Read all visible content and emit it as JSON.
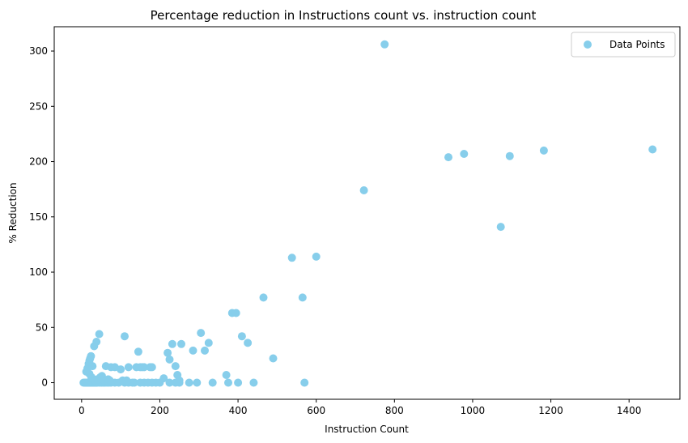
{
  "chart_data": {
    "type": "scatter",
    "title": "Percentage reduction in Instructions count vs. instruction count",
    "xlabel": "Instruction Count",
    "ylabel": "% Reduction",
    "xlim": [
      -70,
      1530
    ],
    "ylim": [
      -15,
      322
    ],
    "xticks": [
      0,
      200,
      400,
      600,
      800,
      1000,
      1200,
      1400
    ],
    "yticks": [
      0,
      50,
      100,
      150,
      200,
      250,
      300
    ],
    "grid": false,
    "legend": {
      "position": "top-right",
      "entries": [
        "Data Points"
      ]
    },
    "color": "#87ceeb",
    "series": [
      {
        "name": "Data Points",
        "points": [
          [
            5,
            0
          ],
          [
            8,
            0
          ],
          [
            10,
            0
          ],
          [
            12,
            0
          ],
          [
            14,
            0
          ],
          [
            16,
            0
          ],
          [
            18,
            0
          ],
          [
            20,
            0
          ],
          [
            22,
            0
          ],
          [
            24,
            0
          ],
          [
            26,
            0
          ],
          [
            28,
            0
          ],
          [
            30,
            0
          ],
          [
            32,
            0
          ],
          [
            34,
            0
          ],
          [
            36,
            0
          ],
          [
            38,
            0
          ],
          [
            40,
            0
          ],
          [
            45,
            0
          ],
          [
            50,
            0
          ],
          [
            55,
            0
          ],
          [
            60,
            0
          ],
          [
            65,
            0
          ],
          [
            70,
            0
          ],
          [
            75,
            0
          ],
          [
            85,
            0
          ],
          [
            95,
            0
          ],
          [
            110,
            0
          ],
          [
            120,
            0
          ],
          [
            130,
            0
          ],
          [
            135,
            0
          ],
          [
            150,
            0
          ],
          [
            160,
            0
          ],
          [
            170,
            0
          ],
          [
            180,
            0
          ],
          [
            190,
            0
          ],
          [
            200,
            0
          ],
          [
            225,
            0
          ],
          [
            240,
            0
          ],
          [
            250,
            0
          ],
          [
            275,
            0
          ],
          [
            295,
            0
          ],
          [
            335,
            0
          ],
          [
            375,
            0
          ],
          [
            400,
            0
          ],
          [
            440,
            0
          ],
          [
            570,
            0
          ],
          [
            12,
            10
          ],
          [
            15,
            13
          ],
          [
            18,
            17
          ],
          [
            20,
            20
          ],
          [
            22,
            22
          ],
          [
            24,
            24
          ],
          [
            28,
            15
          ],
          [
            32,
            33
          ],
          [
            38,
            37
          ],
          [
            45,
            44
          ],
          [
            20,
            8
          ],
          [
            25,
            5
          ],
          [
            30,
            3
          ],
          [
            35,
            2
          ],
          [
            40,
            3
          ],
          [
            48,
            5
          ],
          [
            52,
            6
          ],
          [
            58,
            2
          ],
          [
            62,
            15
          ],
          [
            68,
            3
          ],
          [
            72,
            2
          ],
          [
            75,
            14
          ],
          [
            85,
            14
          ],
          [
            100,
            12
          ],
          [
            105,
            2
          ],
          [
            110,
            42
          ],
          [
            115,
            2
          ],
          [
            120,
            14
          ],
          [
            140,
            14
          ],
          [
            145,
            28
          ],
          [
            150,
            14
          ],
          [
            155,
            14
          ],
          [
            160,
            14
          ],
          [
            175,
            14
          ],
          [
            180,
            14
          ],
          [
            210,
            4
          ],
          [
            220,
            27
          ],
          [
            225,
            21
          ],
          [
            232,
            35
          ],
          [
            240,
            15
          ],
          [
            245,
            7
          ],
          [
            250,
            2
          ],
          [
            255,
            35
          ],
          [
            285,
            29
          ],
          [
            305,
            45
          ],
          [
            315,
            29
          ],
          [
            325,
            36
          ],
          [
            370,
            7
          ],
          [
            385,
            63
          ],
          [
            395,
            63
          ],
          [
            410,
            42
          ],
          [
            425,
            36
          ],
          [
            465,
            77
          ],
          [
            490,
            22
          ],
          [
            538,
            113
          ],
          [
            565,
            77
          ],
          [
            600,
            114
          ],
          [
            722,
            174
          ],
          [
            775,
            306
          ],
          [
            938,
            204
          ],
          [
            978,
            207
          ],
          [
            1072,
            141
          ],
          [
            1095,
            205
          ],
          [
            1182,
            210
          ],
          [
            1460,
            211
          ]
        ]
      }
    ]
  }
}
